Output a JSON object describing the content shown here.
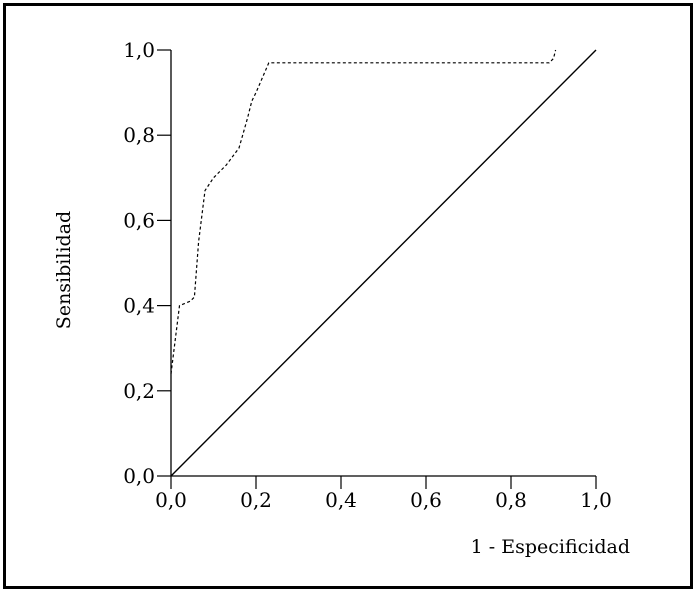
{
  "chart_data": {
    "type": "line",
    "title": "",
    "xlabel": "1 - Especificidad",
    "ylabel": "Sensibilidad",
    "xlim": [
      0,
      1
    ],
    "ylim": [
      0,
      1
    ],
    "grid": false,
    "x_ticks": [
      "0,0",
      "0,2",
      "0,4",
      "0,6",
      "0,8",
      "1,0"
    ],
    "y_ticks": [
      "0,0",
      "0,2",
      "0,4",
      "0,6",
      "0,8",
      "1,0"
    ],
    "series": [
      {
        "style": "dashed",
        "x": [
          0.0,
          0.02,
          0.045,
          0.055,
          0.065,
          0.08,
          0.1,
          0.13,
          0.16,
          0.18,
          0.19,
          0.2,
          0.23,
          0.89,
          0.9,
          0.905
        ],
        "y": [
          0.24,
          0.4,
          0.41,
          0.42,
          0.55,
          0.67,
          0.7,
          0.73,
          0.77,
          0.84,
          0.88,
          0.9,
          0.97,
          0.97,
          0.98,
          1.0
        ]
      },
      {
        "style": "solid",
        "x": [
          0.0,
          1.0
        ],
        "y": [
          0.0,
          1.0
        ]
      }
    ]
  }
}
